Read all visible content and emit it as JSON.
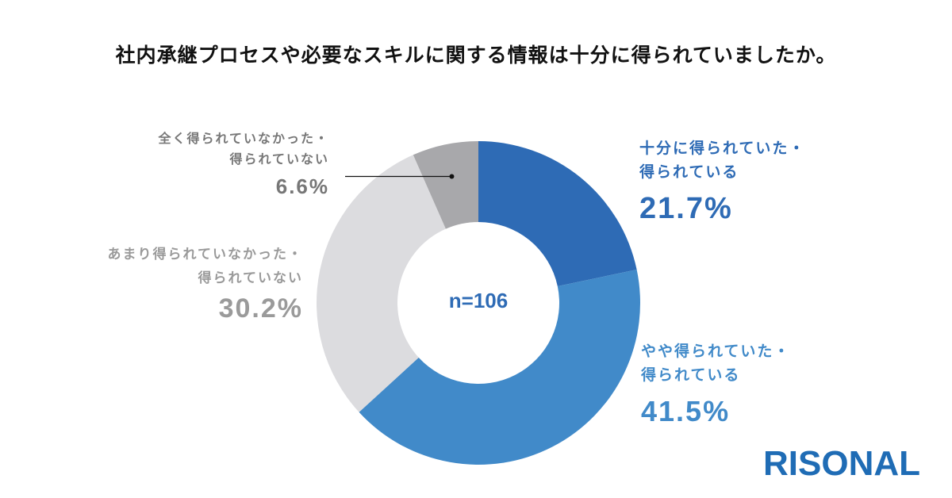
{
  "chart_data": {
    "type": "pie",
    "donut": true,
    "title": "社内承継プロセスや必要なスキルに関する情報は十分に得られていましたか。",
    "center_label": "n=106",
    "start": "top",
    "direction": "clockwise",
    "slices": [
      {
        "label_line1": "十分に得られていた・",
        "label_line2": "得られている",
        "value": 21.7,
        "value_label": "21.7%",
        "color": "#2e6bb5",
        "text_color": "#2e6bb5"
      },
      {
        "label_line1": "やや得られていた・",
        "label_line2": "得られている",
        "value": 41.5,
        "value_label": "41.5%",
        "color": "#418ac9",
        "text_color": "#418ac9"
      },
      {
        "label_line1": "あまり得られていなかった・",
        "label_line2": "得られていない",
        "value": 30.2,
        "value_label": "30.2%",
        "color": "#dcdcdf",
        "text_color": "#9a9a9a"
      },
      {
        "label_line1": "全く得られていなかった・",
        "label_line2": "得られていない",
        "value": 6.6,
        "value_label": "6.6%",
        "color": "#a8a8ab",
        "text_color": "#777777"
      }
    ]
  },
  "logo": "RISONAL"
}
